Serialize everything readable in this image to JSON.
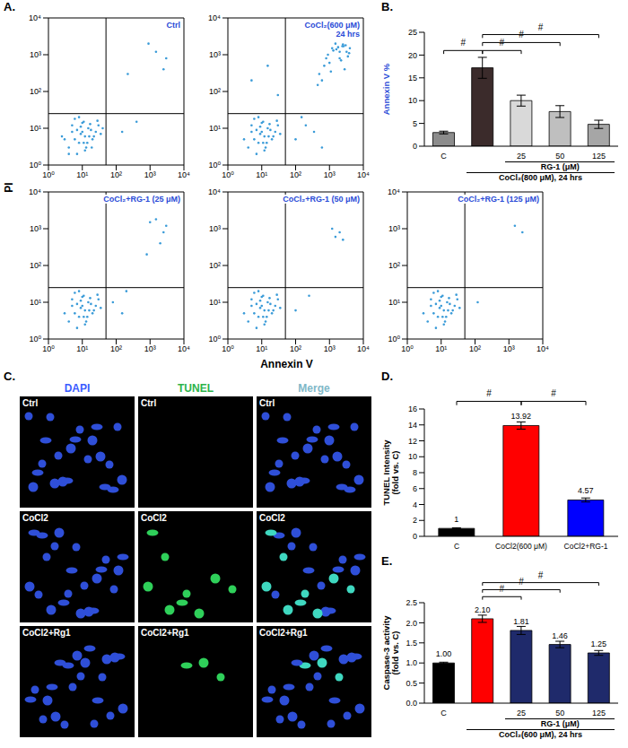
{
  "panel_letters": [
    "A.",
    "B.",
    "C.",
    "D.",
    "E."
  ],
  "flow_axes": {
    "x_label": "Annexin V",
    "y_label": "PI"
  },
  "chart_data": [
    {
      "type": "scatter",
      "title": "Ctrl",
      "x": [
        4,
        6,
        8,
        10,
        12,
        15,
        5,
        7,
        9,
        11,
        14,
        18,
        22,
        3,
        6,
        9,
        13,
        17,
        25,
        30,
        8,
        12,
        20,
        5,
        10,
        16,
        7,
        11,
        28,
        35,
        2.5,
        4,
        19,
        40,
        220,
        1500,
        2500,
        900,
        3000,
        150,
        400
      ],
      "values": [
        3,
        5,
        4,
        8,
        6,
        10,
        12,
        2,
        7,
        15,
        4,
        9,
        6,
        5,
        18,
        11,
        3,
        13,
        8,
        12,
        20,
        2.5,
        5,
        8,
        14,
        6,
        9,
        4,
        16,
        7,
        6,
        2,
        3,
        10,
        300,
        1200,
        400,
        2000,
        800,
        8,
        15
      ],
      "xlim": [
        1,
        10000
      ],
      "ylim": [
        1,
        10000
      ],
      "xticks": [
        {
          "value": 1,
          "label": "10⁰"
        },
        {
          "value": 10,
          "label": "10¹"
        },
        {
          "value": 100,
          "label": "10²"
        },
        {
          "value": 1000,
          "label": "10³"
        },
        {
          "value": 10000,
          "label": "10⁴"
        }
      ],
      "yticks": [
        {
          "value": 1,
          "label": "10⁰"
        },
        {
          "value": 10,
          "label": "10¹"
        },
        {
          "value": 100,
          "label": "10²"
        },
        {
          "value": 1000,
          "label": "10³"
        },
        {
          "value": 10000,
          "label": "10⁴"
        }
      ],
      "log": true,
      "color": "#3a9bd8",
      "quadrant_lines": {
        "x": 50,
        "y": 25
      }
    },
    {
      "type": "scatter",
      "title": "CoCl₂(600 μM)\n24 hrs",
      "x": [
        4,
        6,
        8,
        10,
        12,
        15,
        5,
        7,
        9,
        11,
        14,
        18,
        22,
        3,
        6,
        9,
        13,
        17,
        25,
        30,
        8,
        12,
        20,
        5,
        10,
        16,
        7,
        11,
        28,
        35,
        500,
        800,
        1200,
        1500,
        2000,
        2500,
        3000,
        3500,
        4000,
        1000,
        1800,
        2200,
        2800,
        600,
        900,
        1300,
        2600,
        3200,
        700,
        1600,
        2000,
        3800,
        450,
        1100,
        2400,
        100,
        200,
        350,
        150,
        600,
        5,
        15,
        30
      ],
      "values": [
        3,
        5,
        4,
        8,
        6,
        10,
        12,
        2,
        7,
        15,
        4,
        9,
        6,
        5,
        18,
        11,
        3,
        13,
        8,
        12,
        20,
        2.5,
        5,
        8,
        14,
        6,
        9,
        4,
        16,
        7,
        300,
        800,
        1500,
        2000,
        1200,
        1900,
        1800,
        900,
        1500,
        600,
        1600,
        700,
        400,
        200,
        1000,
        1300,
        1700,
        1200,
        500,
        1400,
        800,
        1100,
        150,
        350,
        1700,
        5,
        12,
        8,
        20,
        3,
        200,
        500,
        80
      ],
      "xlim": [
        1,
        10000
      ],
      "ylim": [
        1,
        10000
      ],
      "xticks": [
        {
          "value": 1,
          "label": "10⁰"
        },
        {
          "value": 10,
          "label": "10¹"
        },
        {
          "value": 100,
          "label": "10²"
        },
        {
          "value": 1000,
          "label": "10³"
        },
        {
          "value": 10000,
          "label": "10⁴"
        }
      ],
      "yticks": [
        {
          "value": 1,
          "label": "10⁰"
        },
        {
          "value": 10,
          "label": "10¹"
        },
        {
          "value": 100,
          "label": "10²"
        },
        {
          "value": 1000,
          "label": "10³"
        },
        {
          "value": 10000,
          "label": "10⁴"
        }
      ],
      "log": true,
      "color": "#3a9bd8",
      "quadrant_lines": {
        "x": 50,
        "y": 25
      }
    },
    {
      "type": "scatter",
      "title": "CoCl₂+RG-1 (25 μM)",
      "x": [
        4,
        6,
        8,
        10,
        12,
        15,
        5,
        7,
        9,
        11,
        14,
        18,
        22,
        3,
        6,
        9,
        13,
        17,
        25,
        30,
        8,
        12,
        20,
        5,
        10,
        16,
        7,
        11,
        28,
        35,
        1000,
        1500,
        2500,
        3000,
        2000,
        800,
        80,
        150,
        200
      ],
      "values": [
        3,
        5,
        4,
        8,
        6,
        10,
        12,
        2,
        7,
        15,
        4,
        9,
        6,
        5,
        18,
        11,
        3,
        13,
        8,
        12,
        20,
        2.5,
        5,
        8,
        14,
        6,
        9,
        4,
        16,
        7,
        1500,
        1800,
        800,
        1200,
        400,
        200,
        10,
        5,
        20
      ],
      "xlim": [
        1,
        10000
      ],
      "ylim": [
        1,
        10000
      ],
      "xticks": [
        {
          "value": 1,
          "label": "10⁰"
        },
        {
          "value": 10,
          "label": "10¹"
        },
        {
          "value": 100,
          "label": "10²"
        },
        {
          "value": 1000,
          "label": "10³"
        },
        {
          "value": 10000,
          "label": "10⁴"
        }
      ],
      "yticks": [
        {
          "value": 1,
          "label": "10⁰"
        },
        {
          "value": 10,
          "label": "10¹"
        },
        {
          "value": 100,
          "label": "10²"
        },
        {
          "value": 1000,
          "label": "10³"
        },
        {
          "value": 10000,
          "label": "10⁴"
        }
      ],
      "log": true,
      "color": "#3a9bd8",
      "quadrant_lines": {
        "x": 50,
        "y": 25
      }
    },
    {
      "type": "scatter",
      "title": "CoCl₂+RG-1 (50 μM)",
      "x": [
        4,
        6,
        8,
        10,
        12,
        15,
        5,
        7,
        9,
        11,
        14,
        18,
        22,
        3,
        6,
        9,
        13,
        17,
        25,
        30,
        8,
        12,
        20,
        5,
        10,
        16,
        7,
        11,
        28,
        35,
        1500,
        2000,
        2500,
        1200,
        100,
        250
      ],
      "values": [
        3,
        5,
        4,
        8,
        6,
        10,
        12,
        2,
        7,
        15,
        4,
        9,
        6,
        5,
        18,
        11,
        3,
        13,
        8,
        12,
        20,
        2.5,
        5,
        8,
        14,
        6,
        9,
        4,
        16,
        7,
        600,
        800,
        500,
        1000,
        6,
        15
      ],
      "xlim": [
        1,
        10000
      ],
      "ylim": [
        1,
        10000
      ],
      "xticks": [
        {
          "value": 1,
          "label": "10⁰"
        },
        {
          "value": 10,
          "label": "10¹"
        },
        {
          "value": 100,
          "label": "10²"
        },
        {
          "value": 1000,
          "label": "10³"
        },
        {
          "value": 10000,
          "label": "10⁴"
        }
      ],
      "yticks": [
        {
          "value": 1,
          "label": "10⁰"
        },
        {
          "value": 10,
          "label": "10¹"
        },
        {
          "value": 100,
          "label": "10²"
        },
        {
          "value": 1000,
          "label": "10³"
        },
        {
          "value": 10000,
          "label": "10⁴"
        }
      ],
      "log": true,
      "color": "#3a9bd8",
      "quadrant_lines": {
        "x": 50,
        "y": 25
      }
    },
    {
      "type": "scatter",
      "title": "CoCl₂+RG-1 (125 μM)",
      "x": [
        4,
        6,
        8,
        10,
        12,
        15,
        5,
        7,
        9,
        11,
        14,
        18,
        22,
        3,
        6,
        9,
        13,
        17,
        25,
        30,
        8,
        12,
        20,
        5,
        10,
        16,
        7,
        11,
        28,
        35,
        1500,
        2500,
        120
      ],
      "values": [
        3,
        5,
        4,
        8,
        6,
        10,
        12,
        2,
        7,
        15,
        4,
        9,
        6,
        5,
        18,
        11,
        3,
        13,
        8,
        12,
        20,
        2.5,
        5,
        8,
        14,
        6,
        9,
        4,
        16,
        7,
        1200,
        800,
        10
      ],
      "xlim": [
        1,
        10000
      ],
      "ylim": [
        1,
        10000
      ],
      "xticks": [
        {
          "value": 1,
          "label": "10⁰"
        },
        {
          "value": 10,
          "label": "10¹"
        },
        {
          "value": 100,
          "label": "10²"
        },
        {
          "value": 1000,
          "label": "10³"
        },
        {
          "value": 10000,
          "label": "10⁴"
        }
      ],
      "yticks": [
        {
          "value": 1,
          "label": "10⁰"
        },
        {
          "value": 10,
          "label": "10¹"
        },
        {
          "value": 100,
          "label": "10²"
        },
        {
          "value": 1000,
          "label": "10³"
        },
        {
          "value": 10000,
          "label": "10⁴"
        }
      ],
      "log": true,
      "color": "#3a9bd8",
      "quadrant_lines": {
        "x": 50,
        "y": 25
      }
    },
    {
      "type": "bar",
      "categories": [
        "C",
        null,
        "25",
        "50",
        "125"
      ],
      "values": [
        3.0,
        17.2,
        10.0,
        7.6,
        4.8
      ],
      "errors": [
        0.3,
        2.3,
        1.2,
        1.3,
        0.9
      ],
      "colors": [
        "#8c8c8c",
        "#3b2b2b",
        "#d9d9d9",
        "#bfbfbf",
        "#a6a6a6"
      ],
      "y_label": "Annexin V %",
      "ylim": [
        0,
        25
      ],
      "yticks": [
        0,
        5,
        10,
        15,
        20,
        25
      ],
      "group_labels": [
        {
          "text": "RG-1 (μM)",
          "from": 2,
          "to": 4
        },
        {
          "text": "CoCl₂(800 μM), 24 hrs",
          "from": 1,
          "to": 4
        }
      ],
      "significance": [
        {
          "from": 0,
          "to": 1,
          "label": "#"
        },
        {
          "from": 1,
          "to": 2,
          "label": "#"
        },
        {
          "from": 1,
          "to": 3,
          "label": "#"
        },
        {
          "from": 1,
          "to": 4,
          "label": "#"
        }
      ]
    },
    {
      "type": "bar",
      "categories": [
        "C",
        "CoCl2(600 μM)",
        "CoCl2+RG-1"
      ],
      "values": [
        1,
        13.92,
        4.57
      ],
      "errors": [
        0.08,
        0.45,
        0.25
      ],
      "colors": [
        "#000000",
        "#ff0000",
        "#0000ff"
      ],
      "data_labels": true,
      "y_label": "TUNEL Intensity (fold vs. C)",
      "ylim": [
        0,
        16
      ],
      "yticks": [
        0,
        2,
        4,
        6,
        8,
        10,
        12,
        14,
        16
      ],
      "significance": [
        {
          "from": 0,
          "to": 1,
          "label": "#"
        },
        {
          "from": 1,
          "to": 2,
          "label": "#"
        }
      ]
    },
    {
      "type": "bar",
      "categories": [
        "C",
        null,
        "25",
        "50",
        "125"
      ],
      "values": [
        1.0,
        2.1,
        1.81,
        1.46,
        1.25
      ],
      "value_labels": [
        "1.00",
        "2.10",
        "1.81",
        "1.46",
        "1.25"
      ],
      "errors": [
        0.02,
        0.09,
        0.1,
        0.08,
        0.06
      ],
      "colors": [
        "#000000",
        "#ff0000",
        "#1f2a6b",
        "#1f2a6b",
        "#1f2a6b"
      ],
      "data_labels": true,
      "y_label": "Caspase-3 activity (fold vs. C)",
      "ylim": [
        0,
        2.5
      ],
      "yticks": [
        {
          "value": 0,
          "label": "0.0"
        },
        0.5,
        {
          "value": 1,
          "label": "1.0"
        },
        1.5,
        {
          "value": 2,
          "label": "2.0"
        },
        2.5
      ],
      "group_labels": [
        {
          "text": "RG-1 (μM)",
          "from": 2,
          "to": 4
        },
        {
          "text": "CoCl₂(600 μM), 24 hrs",
          "from": 1,
          "to": 4
        }
      ],
      "significance": [
        {
          "from": 1,
          "to": 2,
          "label": "#"
        },
        {
          "from": 1,
          "to": 3,
          "label": "#"
        },
        {
          "from": 1,
          "to": 4,
          "label": "#"
        }
      ]
    }
  ],
  "image_panel": {
    "columns": [
      "DAPI",
      "TUNEL",
      "Merge"
    ],
    "rows": [
      "Ctrl",
      "CoCl2",
      "CoCl2+Rg1"
    ],
    "tunel_positive_nuclei": [
      0,
      9,
      3
    ]
  }
}
